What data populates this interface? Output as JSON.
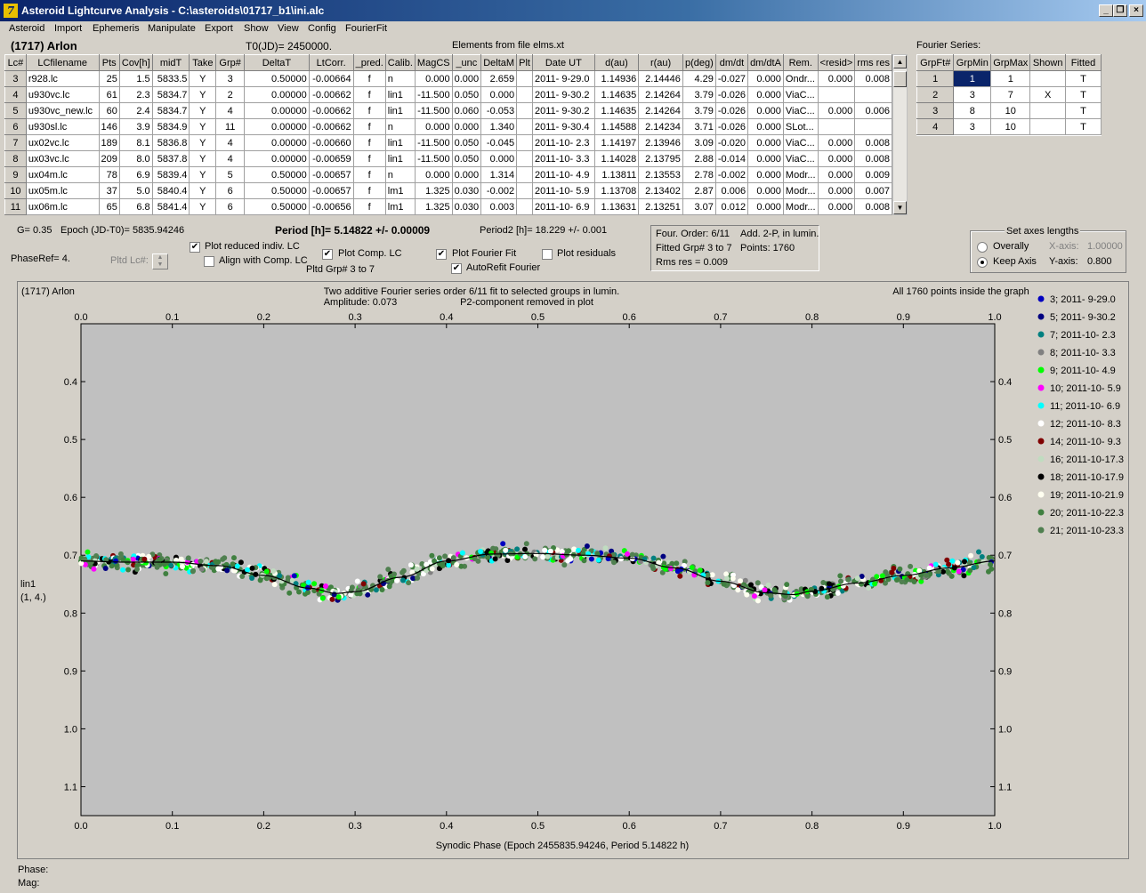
{
  "window": {
    "title": "Asteroid Lightcurve Analysis - C:\\asteroids\\01717_b1\\ini.alc",
    "icon": "app-icon"
  },
  "menu": [
    "Asteroid",
    "Import",
    "Ephemeris",
    "Manipulate",
    "Export",
    "Show",
    "View",
    "Config",
    "FourierFit"
  ],
  "header": {
    "object": "(1717) Arlon",
    "t0": "T0(JD)= 2450000.",
    "elements": "Elements from file elms.xt"
  },
  "lc_table": {
    "columns": [
      "Lc#",
      "LCfilename",
      "Pts",
      "Cov[h]",
      "midT",
      "Take",
      "Grp#",
      "DeltaT",
      "LtCorr.",
      "_pred.",
      "Calib.",
      "MagCS",
      "_unc",
      "DeltaM",
      "Plt",
      "Date UT",
      "d(au)",
      "r(au)",
      "p(deg)",
      "dm/dt",
      "dm/dtA",
      "Rem.",
      "<resid>",
      "rms res"
    ],
    "rows": [
      [
        "3",
        "r928.lc",
        "25",
        "1.5",
        "5833.5",
        "Y",
        "3",
        "0.50000",
        "-0.00664",
        "f",
        "n",
        "0.000",
        "0.000",
        "2.659",
        "",
        "2011- 9-29.0",
        "1.14936",
        "2.14446",
        "4.29",
        "-0.027",
        "0.000",
        "Ondr...",
        "0.000",
        "0.008"
      ],
      [
        "4",
        "u930vc.lc",
        "61",
        "2.3",
        "5834.7",
        "Y",
        "2",
        "0.00000",
        "-0.00662",
        "f",
        "lin1",
        "-11.500",
        "0.050",
        "0.000",
        "",
        "2011- 9-30.2",
        "1.14635",
        "2.14264",
        "3.79",
        "-0.026",
        "0.000",
        "ViaC...",
        "",
        ""
      ],
      [
        "5",
        "u930vc_new.lc",
        "60",
        "2.4",
        "5834.7",
        "Y",
        "4",
        "0.00000",
        "-0.00662",
        "f",
        "lin1",
        "-11.500",
        "0.060",
        "-0.053",
        "",
        "2011- 9-30.2",
        "1.14635",
        "2.14264",
        "3.79",
        "-0.026",
        "0.000",
        "ViaC...",
        "0.000",
        "0.006"
      ],
      [
        "6",
        "u930sl.lc",
        "146",
        "3.9",
        "5834.9",
        "Y",
        "11",
        "0.00000",
        "-0.00662",
        "f",
        "n",
        "0.000",
        "0.000",
        "1.340",
        "",
        "2011- 9-30.4",
        "1.14588",
        "2.14234",
        "3.71",
        "-0.026",
        "0.000",
        "SLot...",
        "",
        ""
      ],
      [
        "7",
        "ux02vc.lc",
        "189",
        "8.1",
        "5836.8",
        "Y",
        "4",
        "0.00000",
        "-0.00660",
        "f",
        "lin1",
        "-11.500",
        "0.050",
        "-0.045",
        "",
        "2011-10- 2.3",
        "1.14197",
        "2.13946",
        "3.09",
        "-0.020",
        "0.000",
        "ViaC...",
        "0.000",
        "0.008"
      ],
      [
        "8",
        "ux03vc.lc",
        "209",
        "8.0",
        "5837.8",
        "Y",
        "4",
        "0.00000",
        "-0.00659",
        "f",
        "lin1",
        "-11.500",
        "0.050",
        "0.000",
        "",
        "2011-10- 3.3",
        "1.14028",
        "2.13795",
        "2.88",
        "-0.014",
        "0.000",
        "ViaC...",
        "0.000",
        "0.008"
      ],
      [
        "9",
        "ux04m.lc",
        "78",
        "6.9",
        "5839.4",
        "Y",
        "5",
        "0.50000",
        "-0.00657",
        "f",
        "n",
        "0.000",
        "0.000",
        "1.314",
        "",
        "2011-10- 4.9",
        "1.13811",
        "2.13553",
        "2.78",
        "-0.002",
        "0.000",
        "Modr...",
        "0.000",
        "0.009"
      ],
      [
        "10",
        "ux05m.lc",
        "37",
        "5.0",
        "5840.4",
        "Y",
        "6",
        "0.50000",
        "-0.00657",
        "f",
        "lm1",
        "1.325",
        "0.030",
        "-0.002",
        "",
        "2011-10- 5.9",
        "1.13708",
        "2.13402",
        "2.87",
        "0.006",
        "0.000",
        "Modr...",
        "0.000",
        "0.007"
      ],
      [
        "11",
        "ux06m.lc",
        "65",
        "6.8",
        "5841.4",
        "Y",
        "6",
        "0.50000",
        "-0.00656",
        "f",
        "lm1",
        "1.325",
        "0.030",
        "0.003",
        "",
        "2011-10- 6.9",
        "1.13631",
        "2.13251",
        "3.07",
        "0.012",
        "0.000",
        "Modr...",
        "0.000",
        "0.008"
      ]
    ]
  },
  "fourier_series": {
    "label": "Fourier Series:",
    "columns": [
      "GrpFt#",
      "GrpMin",
      "GrpMax",
      "Shown",
      "Fitted"
    ],
    "rows": [
      [
        "1",
        "1",
        "1",
        "",
        "T"
      ],
      [
        "2",
        "3",
        "7",
        "X",
        "T"
      ],
      [
        "3",
        "8",
        "10",
        "",
        "T"
      ],
      [
        "4",
        "3",
        "10",
        "",
        "T"
      ]
    ]
  },
  "controls": {
    "g": "G= 0.35",
    "epoch": "Epoch (JD-T0)= 5835.94246",
    "period": "Period [h]= 5.14822 +/- 0.00009",
    "period2": "Period2 [h]= 18.229 +/- 0.001",
    "phaseref": "PhaseRef= 4.",
    "pltd_lc": "Pltd Lc#:",
    "plot_reduced": "Plot reduced indiv. LC",
    "align_comp": "Align with Comp. LC",
    "plot_comp": "Plot Comp. LC",
    "pltd_grp": "Pltd Grp#  3   to   7",
    "plot_fourier": "Plot Fourier Fit",
    "autorefit": "AutoRefit Fourier",
    "plot_resid": "Plot residuals",
    "info1": "Four. Order:  6/11",
    "info2": "Add. 2-P, in lumin.",
    "info3": "Fitted Grp# 3 to 7",
    "info4": "Points: 1760",
    "info5": "Rms res     = 0.009",
    "axes_title": "Set axes lengths",
    "overally": "Overally",
    "keep_axis": "Keep Axis",
    "xaxis": "X-axis:",
    "xaxis_val": "1.00000",
    "yaxis": "Y-axis:",
    "yaxis_val": "0.800",
    "checked": {
      "plot_reduced": true,
      "align_comp": false,
      "plot_comp": true,
      "plot_fourier": true,
      "autorefit": true,
      "plot_resid": false
    },
    "radio_selected": "keep_axis"
  },
  "plot": {
    "object": "(1717) Arlon",
    "title1": "Two additive Fourier series order 6/11 fit to selected groups in lumin.",
    "amplitude": "Amplitude: 0.073",
    "p2_note": "P2-component removed in plot",
    "points_note": "All 1760 points inside the graph",
    "ylabel1": "lin1",
    "ylabel2": "(1, 4.)",
    "xlabel": "Synodic Phase (Epoch 2455835.94246, Period 5.14822 h)"
  },
  "chart_data": {
    "type": "scatter",
    "x_range": [
      0.0,
      1.0
    ],
    "y_range": [
      0.3,
      1.15
    ],
    "y_inverted": true,
    "x_ticks": [
      "0.0",
      "0.1",
      "0.2",
      "0.3",
      "0.4",
      "0.5",
      "0.6",
      "0.7",
      "0.8",
      "0.9",
      "1.0"
    ],
    "y_ticks": [
      "0.4",
      "0.5",
      "0.6",
      "0.7",
      "0.8",
      "0.9",
      "1.0",
      "1.1"
    ],
    "fit_curve": {
      "x": [
        0.0,
        0.05,
        0.1,
        0.15,
        0.2,
        0.25,
        0.28,
        0.3,
        0.35,
        0.4,
        0.45,
        0.5,
        0.55,
        0.6,
        0.65,
        0.7,
        0.75,
        0.78,
        0.8,
        0.85,
        0.9,
        0.95,
        1.0
      ],
      "y": [
        0.71,
        0.712,
        0.712,
        0.718,
        0.735,
        0.757,
        0.766,
        0.763,
        0.738,
        0.71,
        0.698,
        0.697,
        0.7,
        0.705,
        0.722,
        0.745,
        0.765,
        0.768,
        0.762,
        0.748,
        0.735,
        0.722,
        0.71
      ]
    },
    "legend": [
      {
        "label": "3; 2011- 9-29.0",
        "color": "#0000c0"
      },
      {
        "label": "5; 2011- 9-30.2",
        "color": "#000080"
      },
      {
        "label": "7; 2011-10- 2.3",
        "color": "#008080"
      },
      {
        "label": "8; 2011-10- 3.3",
        "color": "#808080"
      },
      {
        "label": "9; 2011-10- 4.9",
        "color": "#00ff00"
      },
      {
        "label": "10; 2011-10- 5.9",
        "color": "#ff00ff"
      },
      {
        "label": "11; 2011-10- 6.9",
        "color": "#00ffff"
      },
      {
        "label": "12; 2011-10- 8.3",
        "color": "#ffffff"
      },
      {
        "label": "14; 2011-10- 9.3",
        "color": "#800000"
      },
      {
        "label": "16; 2011-10-17.3",
        "color": "#c0dcc0"
      },
      {
        "label": "18; 2011-10-17.9",
        "color": "#000000"
      },
      {
        "label": "19; 2011-10-21.9",
        "color": "#fffff0"
      },
      {
        "label": "20; 2011-10-22.3",
        "color": "#408040"
      },
      {
        "label": "21; 2011-10-23.3",
        "color": "#508050"
      }
    ]
  },
  "status": {
    "phase": "Phase:",
    "mag": "Mag:"
  }
}
